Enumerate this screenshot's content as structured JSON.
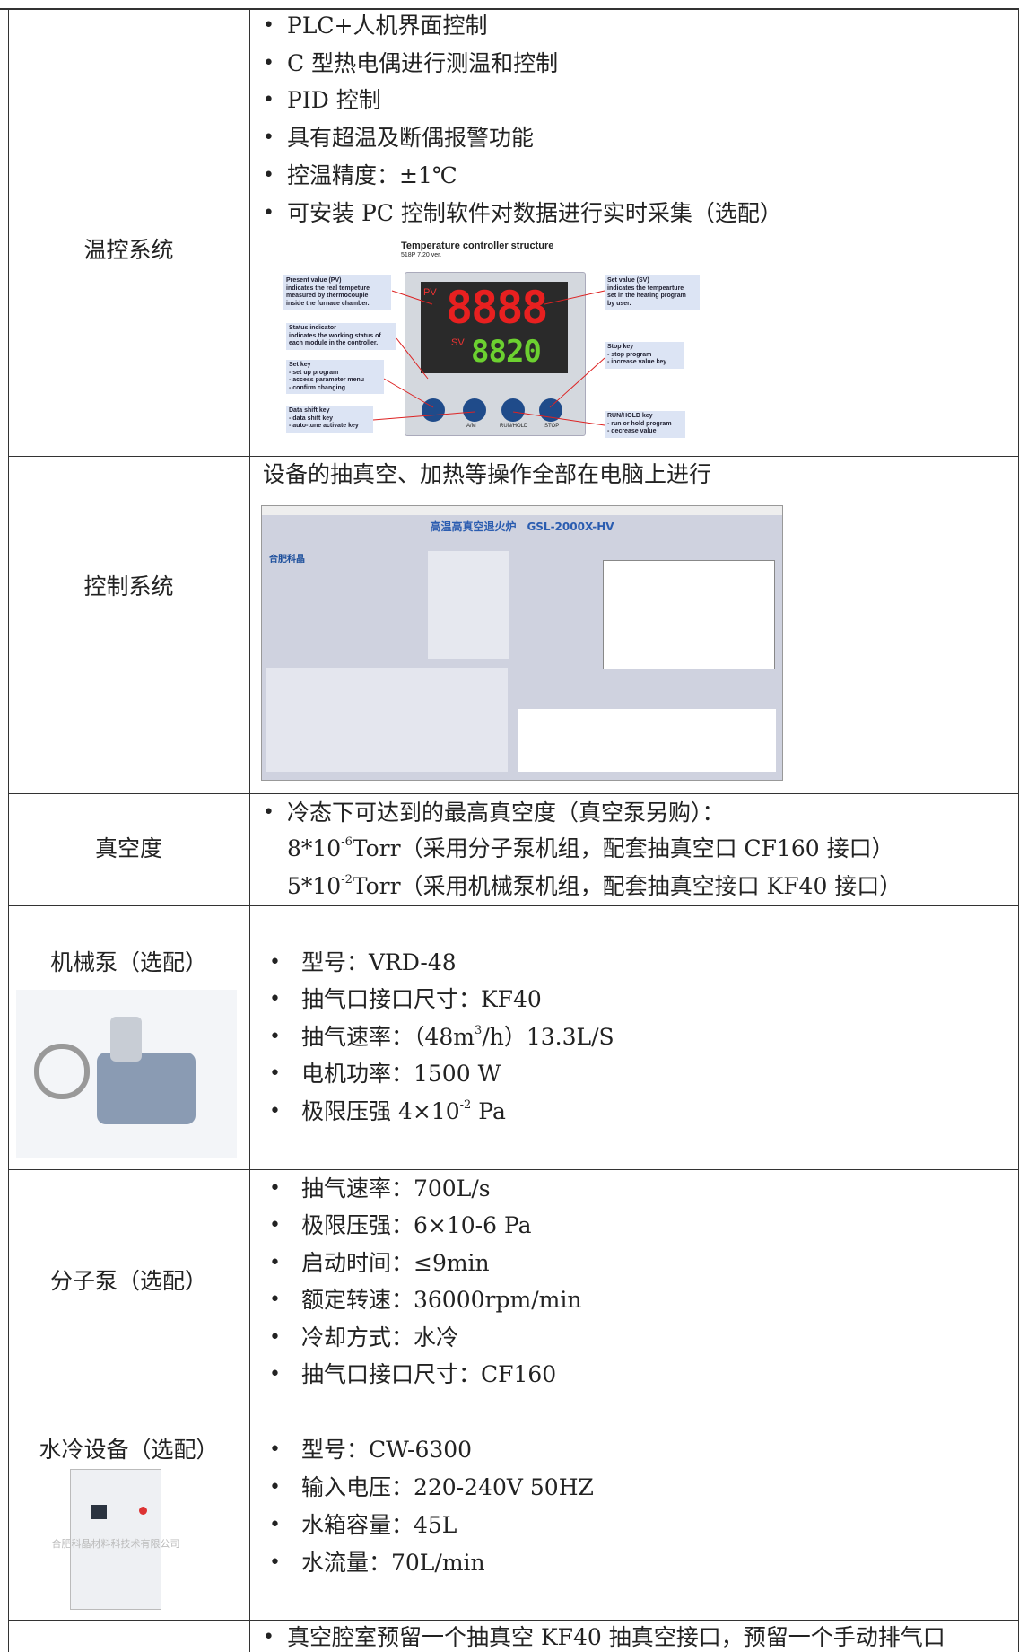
{
  "table": {
    "rows": [
      {
        "label": "温控系统",
        "items": [
          "PLC+人机界面控制",
          "C 型热电偶进行测温和控制",
          "PID 控制",
          "具有超温及断偶报警功能",
          "控温精度：±1℃",
          "可安装 PC 控制软件对数据进行实时采集（选配）"
        ],
        "figure": {
          "title": "Temperature controller structure",
          "subtitle": "518P 7.20 ver.",
          "pv": "PV",
          "sv": "SV",
          "pv_digits": "8888",
          "sv_digits": "8820",
          "buttons": [
            "A/M",
            "RUN/HOLD",
            "STOP"
          ],
          "callouts": [
            [
              "Present value (PV)",
              "indicates the real tempeture",
              "measured by thermocouple",
              "inside the furnace chamber."
            ],
            [
              "Status  indicator",
              "indicates the working status of",
              "each module in the controller."
            ],
            [
              "Set key",
              "- set up program",
              "- access parameter menu",
              "- confirm changing"
            ],
            [
              "Data shift key",
              "- data shift key",
              "- auto-tune activate key"
            ],
            [
              "Set value (SV)",
              "indicates the tempearture",
              "set in the heating program",
              "by user."
            ],
            [
              "Stop key",
              "- stop program",
              "- increase value key"
            ],
            [
              "RUN/HOLD key",
              "- run or hold program",
              "- decrease value"
            ]
          ]
        }
      },
      {
        "label": "控制系统",
        "items": [
          "设备的抽真空、加热等操作全部在电脑上进行"
        ],
        "figure": {
          "title": "高温高真空退火炉　GSL-2000X-HV",
          "logo": "合肥科晶"
        }
      },
      {
        "label": "真空度",
        "items": [
          "冷态下可达到的最高真空度（真空泵另购）："
        ],
        "lines": [
          {
            "base": "8*10",
            "sup": "-6",
            "rest": "Torr（采用分子泵机组，配套抽真空口 CF160 接口）"
          },
          {
            "base": "5*10",
            "sup": "-2",
            "rest": "Torr（采用机械泵机组，配套抽真空接口 KF40 接口）"
          }
        ]
      },
      {
        "label": "机械泵（选配）",
        "items": [
          "型号：VRD-48",
          "抽气口接口尺寸：KF40"
        ],
        "speed": {
          "base": "抽气速率：（48m",
          "sup": "3",
          "rest": "/h）13.3L/S"
        },
        "items2": [
          "电机功率：1500 W"
        ],
        "pressure": {
          "base": "极限压强 4×10",
          "sup": "-2",
          "rest": " Pa"
        }
      },
      {
        "label": "分子泵（选配）",
        "items": [
          "抽气速率：700L/s",
          "极限压强：6×10-6 Pa",
          "启动时间：≤9min",
          "额定转速：36000rpm/min",
          "冷却方式：水冷",
          "抽气口接口尺寸：CF160"
        ]
      },
      {
        "label": "水冷设备（选配）",
        "items": [
          "型号：CW-6300",
          "输入电压：220-240V 50HZ",
          "水箱容量：45L",
          "水流量：70L/min"
        ],
        "watermark": "合肥科晶材料科技术有限公司"
      },
      {
        "label": "",
        "items": [
          "真空腔室预留一个抽真空 KF40 抽真空接口，预留一个手动排气口"
        ]
      }
    ]
  }
}
